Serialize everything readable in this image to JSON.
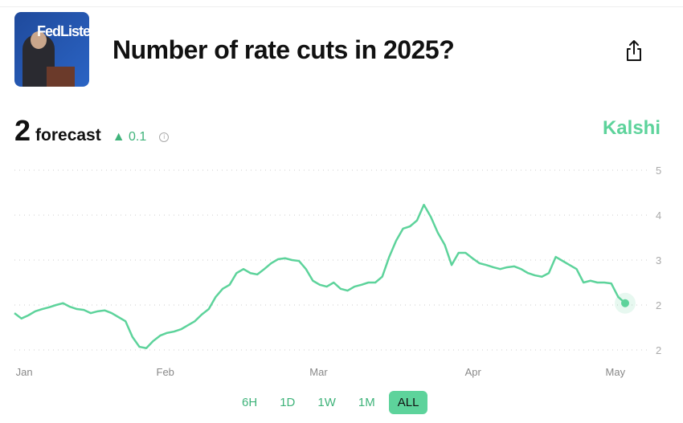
{
  "market": {
    "title": "Number of rate cuts in 2025?",
    "thumbnail_text": "FedListens"
  },
  "headline": {
    "value": "2",
    "label": "forecast",
    "change": "0.1",
    "change_direction": "up"
  },
  "brand": "Kalshi",
  "colors": {
    "accent": "#5dd39b",
    "line": "#5dd39b",
    "grid": "#cccccc"
  },
  "ranges": [
    {
      "label": "6H"
    },
    {
      "label": "1D"
    },
    {
      "label": "1W"
    },
    {
      "label": "1M"
    },
    {
      "label": "ALL",
      "active": true
    }
  ],
  "chart_data": {
    "type": "line",
    "x_ticks": [
      "Jan",
      "Feb",
      "Mar",
      "Apr",
      "May"
    ],
    "y_ticks": [
      "5",
      "4",
      "3",
      "2",
      "2"
    ],
    "ylim": [
      1,
      5
    ],
    "grid": true,
    "values": [
      1.82,
      1.7,
      1.77,
      1.86,
      1.91,
      1.95,
      2.0,
      2.04,
      1.96,
      1.91,
      1.89,
      1.82,
      1.86,
      1.88,
      1.82,
      1.73,
      1.64,
      1.29,
      1.07,
      1.04,
      1.2,
      1.32,
      1.38,
      1.41,
      1.46,
      1.55,
      1.64,
      1.79,
      1.91,
      2.18,
      2.36,
      2.45,
      2.71,
      2.8,
      2.71,
      2.68,
      2.8,
      2.93,
      3.02,
      3.04,
      3.0,
      2.98,
      2.8,
      2.54,
      2.45,
      2.41,
      2.5,
      2.36,
      2.32,
      2.41,
      2.45,
      2.5,
      2.5,
      2.63,
      3.07,
      3.43,
      3.7,
      3.75,
      3.88,
      4.23,
      3.96,
      3.61,
      3.34,
      2.89,
      3.16,
      3.16,
      3.04,
      2.93,
      2.89,
      2.84,
      2.8,
      2.84,
      2.86,
      2.8,
      2.71,
      2.66,
      2.63,
      2.71,
      3.07,
      2.98,
      2.89,
      2.8,
      2.5,
      2.54,
      2.5,
      2.5,
      2.48,
      2.18,
      2.04
    ]
  }
}
